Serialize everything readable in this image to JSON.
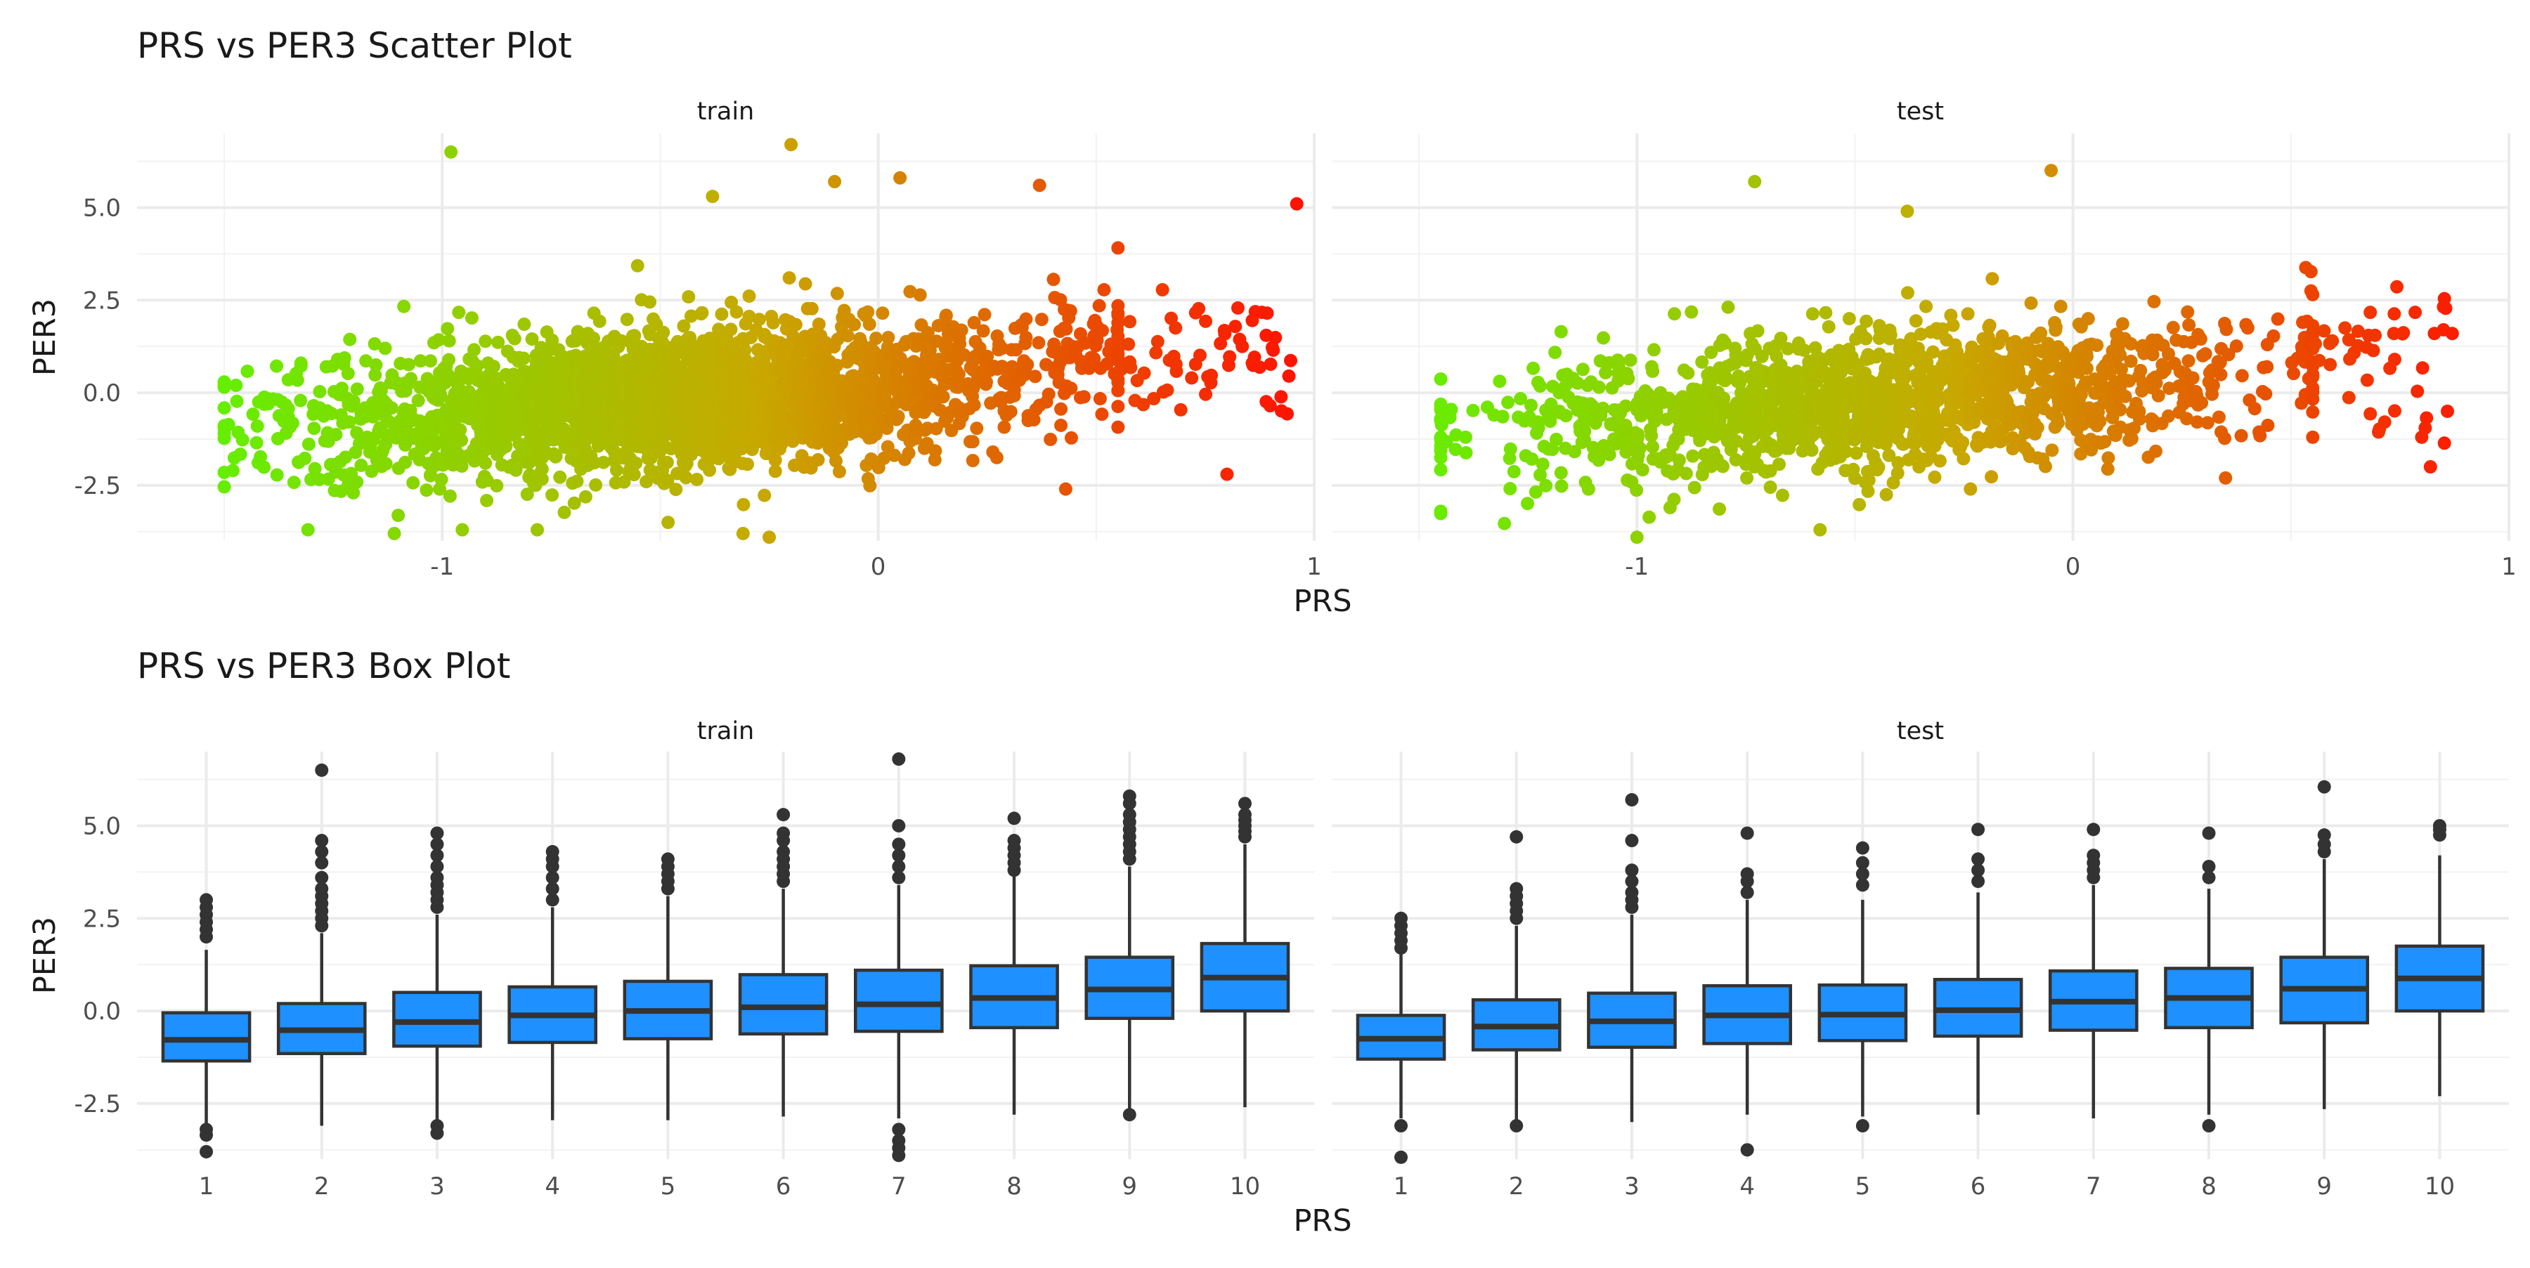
{
  "chart_data": [
    {
      "type": "scatter",
      "title": "PRS vs PER3 Scatter Plot",
      "xlabel": "PRS",
      "ylabel": "PER3",
      "grid": true,
      "color_gradient": {
        "low": "#66ee00",
        "mid": "#c8a800",
        "high": "#ff1100"
      },
      "facets": [
        {
          "label": "train",
          "xlim": [
            -1.7,
            1.0
          ],
          "ylim": [
            -4.0,
            7.0
          ],
          "x_ticks": [
            {
              "value": -1,
              "label": "-1"
            },
            {
              "value": 0,
              "label": "0"
            },
            {
              "value": 1,
              "label": "1"
            }
          ],
          "y_ticks": [
            {
              "value": -2.5,
              "label": "-2.5"
            },
            {
              "value": 0,
              "label": "0.0"
            },
            {
              "value": 2.5,
              "label": "2.5"
            },
            {
              "value": 5,
              "label": "5.0"
            }
          ],
          "x_range": [
            -1.5,
            0.97
          ],
          "highlight_points": [
            [
              -0.98,
              6.5
            ],
            [
              -0.2,
              6.7
            ],
            [
              0.96,
              5.1
            ],
            [
              -0.38,
              5.3
            ],
            [
              0.05,
              5.8
            ],
            [
              -0.1,
              5.7
            ],
            [
              0.37,
              5.6
            ],
            [
              -0.25,
              -3.9
            ],
            [
              -0.31,
              -3.8
            ],
            [
              -1.11,
              -3.8
            ],
            [
              -1.48,
              -2.1
            ],
            [
              0.8,
              -2.2
            ],
            [
              0.43,
              -2.6
            ]
          ],
          "points": []
        },
        {
          "label": "test",
          "xlim": [
            -1.7,
            1.0
          ],
          "ylim": [
            -4.0,
            7.0
          ],
          "x_ticks": [
            {
              "value": -1,
              "label": "-1"
            },
            {
              "value": 0,
              "label": "0"
            },
            {
              "value": 1,
              "label": "1"
            }
          ],
          "y_ticks": [
            {
              "value": -2.5,
              "label": "-2.5"
            },
            {
              "value": 0,
              "label": "0.0"
            },
            {
              "value": 2.5,
              "label": "2.5"
            },
            {
              "value": 5,
              "label": "5.0"
            }
          ],
          "x_range": [
            -1.45,
            0.88
          ],
          "highlight_points": [
            [
              -0.05,
              6.0
            ],
            [
              -0.73,
              5.7
            ],
            [
              -0.38,
              4.9
            ],
            [
              0.85,
              1.7
            ],
            [
              0.87,
              1.6
            ],
            [
              0.82,
              -2.0
            ],
            [
              0.8,
              -1.2
            ],
            [
              -1.0,
              -3.9
            ],
            [
              -0.58,
              -3.7
            ],
            [
              0.35,
              -2.3
            ],
            [
              0.55,
              -1.2
            ]
          ],
          "points": []
        }
      ]
    },
    {
      "type": "box",
      "title": "PRS vs PER3 Box Plot",
      "xlabel": "PRS",
      "ylabel": "PER3",
      "grid": true,
      "fill_color": "#1e90ff",
      "facets": [
        {
          "label": "train",
          "ylim": [
            -4.0,
            7.0
          ],
          "y_ticks": [
            {
              "value": -2.5,
              "label": "-2.5"
            },
            {
              "value": 0,
              "label": "0.0"
            },
            {
              "value": 2.5,
              "label": "2.5"
            },
            {
              "value": 5,
              "label": "5.0"
            }
          ],
          "categories": [
            "1",
            "2",
            "3",
            "4",
            "5",
            "6",
            "7",
            "8",
            "9",
            "10"
          ],
          "boxes": [
            {
              "q1": -1.35,
              "median": -0.78,
              "q3": -0.05,
              "lower": -3.1,
              "upper": 1.65,
              "outliers": [
                2.0,
                2.2,
                2.4,
                2.6,
                2.8,
                3.0,
                -3.2,
                -3.35,
                -3.8
              ]
            },
            {
              "q1": -1.15,
              "median": -0.52,
              "q3": 0.2,
              "lower": -3.1,
              "upper": 2.1,
              "outliers": [
                2.3,
                2.5,
                2.7,
                2.9,
                3.1,
                3.3,
                3.6,
                4.0,
                4.3,
                4.6,
                6.5
              ]
            },
            {
              "q1": -0.95,
              "median": -0.3,
              "q3": 0.5,
              "lower": -3.0,
              "upper": 2.6,
              "outliers": [
                2.8,
                3.0,
                3.2,
                3.4,
                3.6,
                3.9,
                4.2,
                4.5,
                4.8,
                -3.1,
                -3.3
              ]
            },
            {
              "q1": -0.85,
              "median": -0.12,
              "q3": 0.65,
              "lower": -2.95,
              "upper": 2.8,
              "outliers": [
                3.0,
                3.3,
                3.6,
                3.9,
                4.1,
                4.3
              ]
            },
            {
              "q1": -0.75,
              "median": 0.0,
              "q3": 0.8,
              "lower": -2.95,
              "upper": 3.1,
              "outliers": [
                3.3,
                3.5,
                3.7,
                3.9,
                4.1
              ]
            },
            {
              "q1": -0.62,
              "median": 0.1,
              "q3": 0.98,
              "lower": -2.85,
              "upper": 3.3,
              "outliers": [
                3.5,
                3.7,
                3.9,
                4.1,
                4.3,
                4.6,
                4.8,
                5.3
              ]
            },
            {
              "q1": -0.55,
              "median": 0.18,
              "q3": 1.1,
              "lower": -2.9,
              "upper": 3.4,
              "outliers": [
                3.6,
                3.9,
                4.2,
                4.5,
                5.0,
                6.8,
                -3.2,
                -3.5,
                -3.7,
                -3.9
              ]
            },
            {
              "q1": -0.45,
              "median": 0.35,
              "q3": 1.22,
              "lower": -2.8,
              "upper": 3.65,
              "outliers": [
                3.8,
                4.0,
                4.2,
                4.4,
                4.6,
                5.2
              ]
            },
            {
              "q1": -0.2,
              "median": 0.58,
              "q3": 1.45,
              "lower": -2.75,
              "upper": 3.9,
              "outliers": [
                4.1,
                4.3,
                4.5,
                4.7,
                4.9,
                5.1,
                5.3,
                5.6,
                5.8,
                -2.8
              ]
            },
            {
              "q1": 0.0,
              "median": 0.9,
              "q3": 1.82,
              "lower": -2.6,
              "upper": 4.5,
              "outliers": [
                4.7,
                4.85,
                5.0,
                5.15,
                5.3,
                5.6
              ]
            }
          ]
        },
        {
          "label": "test",
          "ylim": [
            -4.0,
            7.0
          ],
          "y_ticks": [
            {
              "value": -2.5,
              "label": "-2.5"
            },
            {
              "value": 0,
              "label": "0.0"
            },
            {
              "value": 2.5,
              "label": "2.5"
            },
            {
              "value": 5,
              "label": "5.0"
            }
          ],
          "categories": [
            "1",
            "2",
            "3",
            "4",
            "5",
            "6",
            "7",
            "8",
            "9",
            "10"
          ],
          "boxes": [
            {
              "q1": -1.3,
              "median": -0.75,
              "q3": -0.12,
              "lower": -2.9,
              "upper": 1.55,
              "outliers": [
                1.7,
                1.9,
                2.1,
                2.3,
                2.5,
                -3.1,
                -3.95
              ]
            },
            {
              "q1": -1.05,
              "median": -0.42,
              "q3": 0.3,
              "lower": -2.95,
              "upper": 2.3,
              "outliers": [
                2.5,
                2.7,
                2.9,
                3.1,
                3.3,
                4.7,
                -3.1
              ]
            },
            {
              "q1": -0.98,
              "median": -0.28,
              "q3": 0.48,
              "lower": -3.0,
              "upper": 2.6,
              "outliers": [
                2.8,
                3.0,
                3.2,
                3.5,
                3.8,
                4.6,
                5.7
              ]
            },
            {
              "q1": -0.88,
              "median": -0.12,
              "q3": 0.68,
              "lower": -2.8,
              "upper": 3.0,
              "outliers": [
                3.2,
                3.5,
                3.7,
                4.8,
                -3.75
              ]
            },
            {
              "q1": -0.8,
              "median": -0.1,
              "q3": 0.7,
              "lower": -2.85,
              "upper": 3.0,
              "outliers": [
                3.4,
                3.7,
                4.0,
                4.4,
                -3.1
              ]
            },
            {
              "q1": -0.68,
              "median": 0.02,
              "q3": 0.85,
              "lower": -2.8,
              "upper": 3.2,
              "outliers": [
                3.5,
                3.8,
                4.1,
                4.9
              ]
            },
            {
              "q1": -0.52,
              "median": 0.25,
              "q3": 1.08,
              "lower": -2.9,
              "upper": 3.4,
              "outliers": [
                3.6,
                3.8,
                4.0,
                4.2,
                4.9
              ]
            },
            {
              "q1": -0.45,
              "median": 0.35,
              "q3": 1.15,
              "lower": -2.8,
              "upper": 3.3,
              "outliers": [
                3.6,
                3.9,
                4.8,
                -3.1
              ]
            },
            {
              "q1": -0.32,
              "median": 0.6,
              "q3": 1.45,
              "lower": -2.65,
              "upper": 4.1,
              "outliers": [
                4.3,
                4.5,
                4.75,
                6.05
              ]
            },
            {
              "q1": 0.0,
              "median": 0.88,
              "q3": 1.75,
              "lower": -2.3,
              "upper": 4.2,
              "outliers": [
                4.75,
                4.9,
                5.0
              ]
            }
          ]
        }
      ]
    }
  ]
}
